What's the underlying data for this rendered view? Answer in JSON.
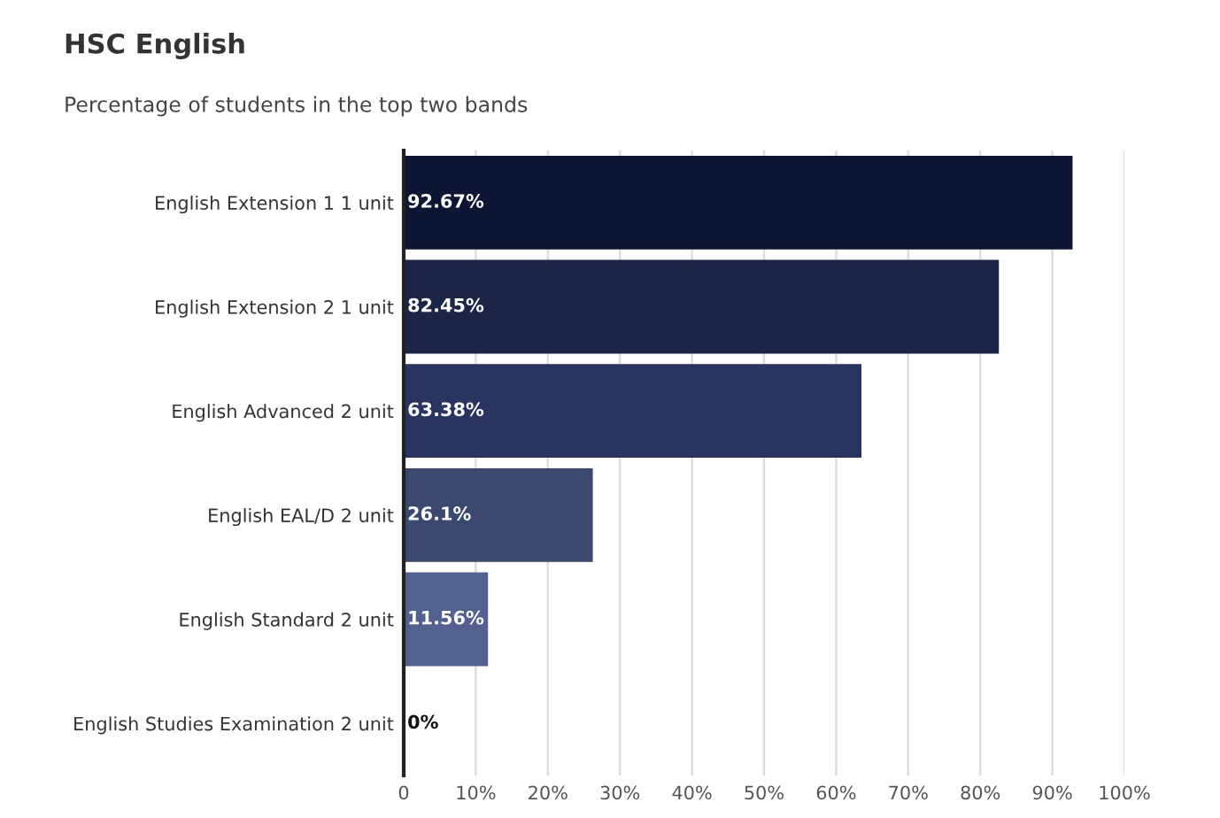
{
  "chart_data": {
    "type": "bar",
    "orientation": "horizontal",
    "title": "HSC English",
    "subtitle": "Percentage of students in the top two bands",
    "categories": [
      "English Extension 1 1 unit",
      "English Extension 2 1 unit",
      "English Advanced 2 unit",
      "English EAL/D 2 unit",
      "English Standard 2 unit",
      "English Studies Examination 2 unit"
    ],
    "values": [
      92.67,
      82.45,
      63.38,
      26.1,
      11.56,
      0
    ],
    "colors": [
      "#0d1733",
      "#1b2548",
      "#2a3461",
      "#3b4870",
      "#52618f",
      "#6b78a3"
    ],
    "value_labels": [
      "92.67%",
      "82.45%",
      "63.38%",
      "26.1%",
      "11.56%",
      "0%"
    ],
    "xlim": [
      0,
      100
    ],
    "xticks": [
      0,
      {
        "value": 10,
        "label": "10%"
      },
      {
        "value": 20,
        "label": "20%"
      },
      {
        "value": 30,
        "label": "30%"
      },
      {
        "value": 40,
        "label": "40%"
      },
      {
        "value": 50,
        "label": "50%"
      },
      {
        "value": 60,
        "label": "60%"
      },
      {
        "value": 70,
        "label": "70%"
      },
      {
        "value": 80,
        "label": "80%"
      },
      {
        "value": 90,
        "label": "90%"
      },
      {
        "value": 100,
        "label": "100%"
      }
    ],
    "grid": "x"
  }
}
